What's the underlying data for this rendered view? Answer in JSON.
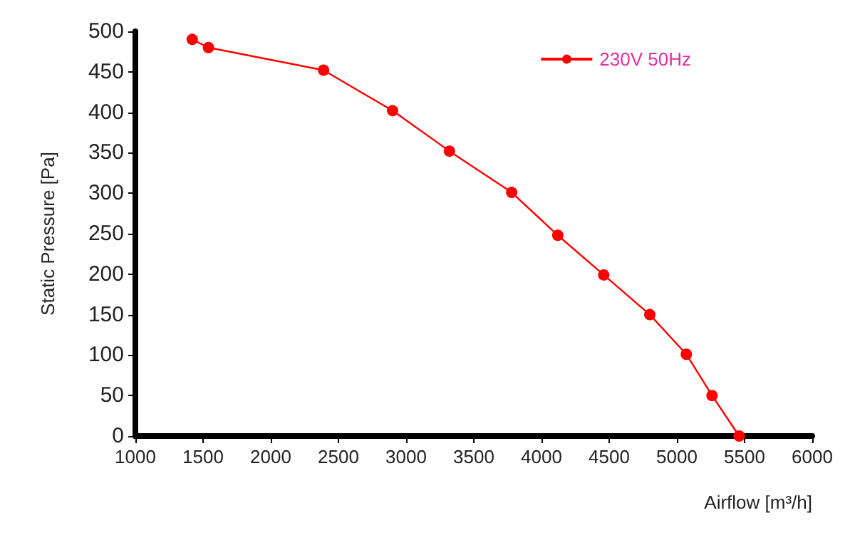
{
  "chart_data": {
    "type": "line",
    "xlabel": "Airflow [m³/h]",
    "ylabel": "Static Pressure [Pa]",
    "xlim": [
      1000,
      6000
    ],
    "xticks": [
      1000,
      1500,
      2000,
      2500,
      3000,
      3500,
      4000,
      4500,
      5000,
      5500,
      6000
    ],
    "ylim": [
      0,
      500
    ],
    "yticks": [
      0,
      50,
      100,
      150,
      200,
      250,
      300,
      350,
      400,
      450,
      500
    ],
    "x": [
      1420,
      1540,
      2390,
      2900,
      3320,
      3780,
      4120,
      4460,
      4800,
      5070,
      5260,
      5460
    ],
    "series": [
      {
        "name": "230V 50Hz",
        "color": "#ff0000",
        "values": [
          490,
          480,
          452,
          402,
          352,
          301,
          248,
          199,
          150,
          101,
          50,
          0
        ]
      }
    ],
    "marker": "circle",
    "line_style": "solid",
    "grid": false,
    "legend": "top right"
  }
}
